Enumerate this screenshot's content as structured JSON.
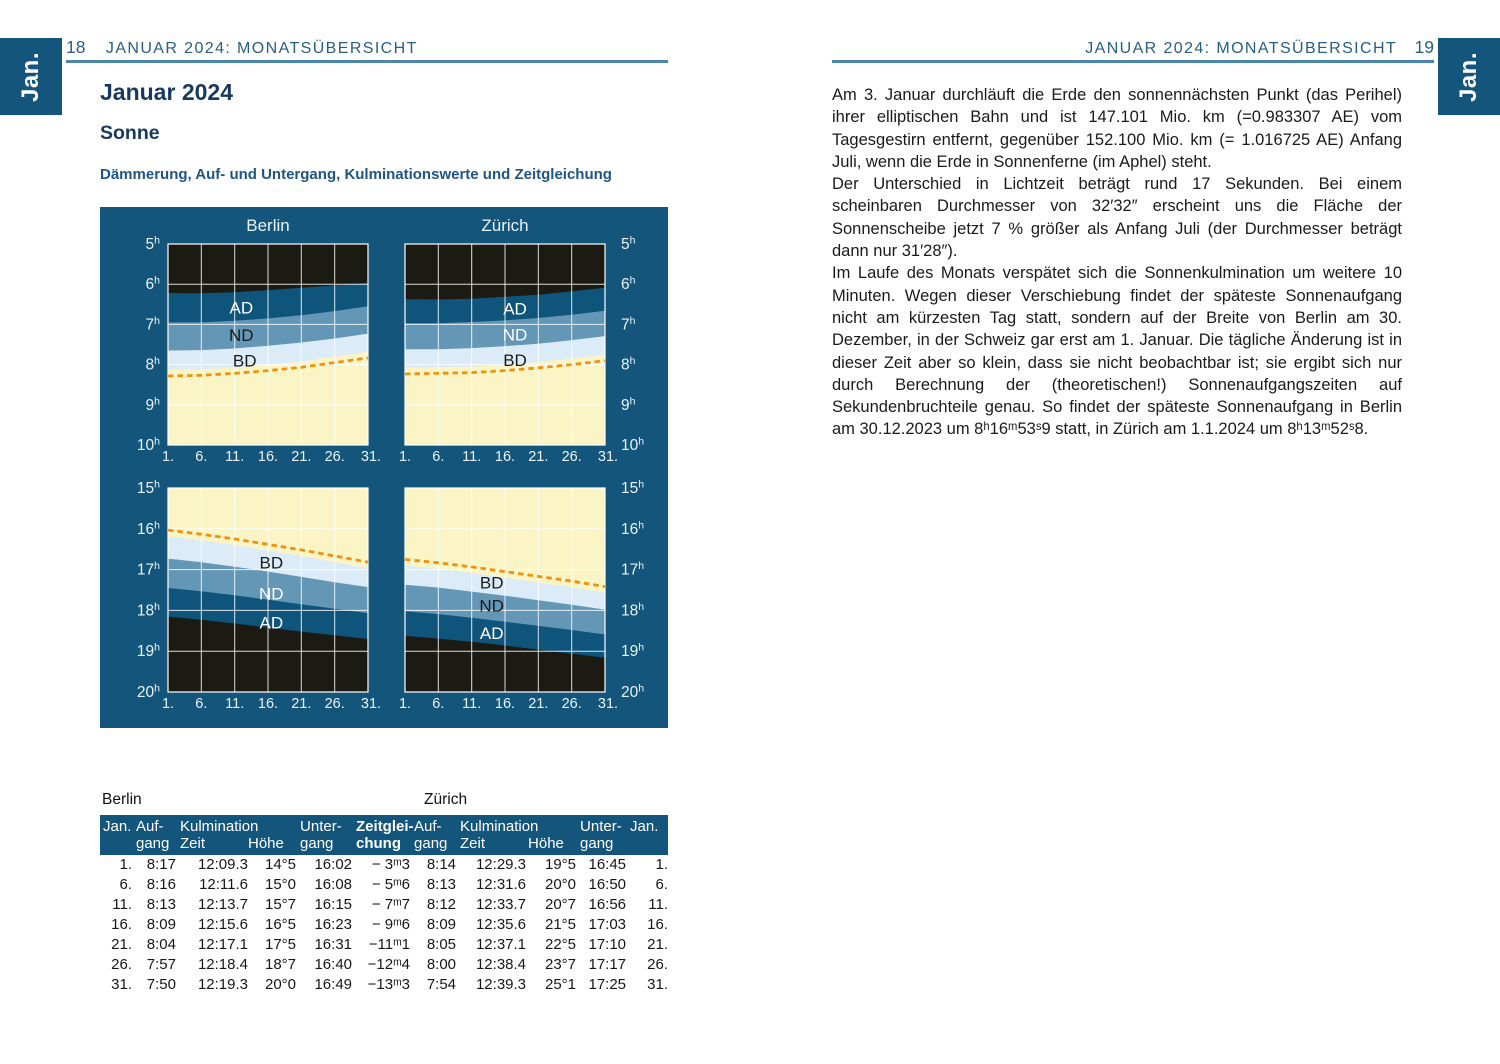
{
  "left_page": {
    "tab": "Jan.",
    "page_number": "18",
    "header": "JANUAR 2024: MONATSÜBERSICHT",
    "title": "Januar 2024",
    "section": "Sonne",
    "subtitle": "Dämmerung, Auf- und Untergang, Kulminationswerte und Zeitgleichung"
  },
  "right_page": {
    "tab": "Jan.",
    "page_number": "19",
    "header": "JANUAR 2024: MONATSÜBERSICHT",
    "paragraphs": [
      "Am 3. Januar durchläuft die Erde den sonnennächsten Punkt (das Perihel) ihrer elliptischen Bahn und ist 147.101 Mio. km (=0.983307 AE) vom Tagesgestirn entfernt, gegenüber 152.100 Mio. km (= 1.016725 AE) Anfang Juli, wenn die Erde in Sonnenferne (im Aphel) steht.",
      "Der Unterschied in Lichtzeit beträgt rund 17 Sekunden. Bei einem scheinbaren Durchmesser von 32′32″ erscheint uns die Fläche der Sonnenscheibe jetzt 7 % größer als Anfang Juli (der Durchmesser beträgt dann nur 31′28″).",
      "Im Laufe des Monats verspätet sich die Sonnenkulmination um weitere 10 Minuten. Wegen dieser Verschiebung findet der späteste Sonnenaufgang nicht am kürzesten Tag statt, sondern auf der Breite von Berlin am 30. Dezember, in der Schweiz gar erst am 1. Januar. Die tägliche Änderung ist in dieser Zeit aber so klein, dass sie nicht beobachtbar ist; sie ergibt sich nur durch Berechnung der (theoretischen!) Sonnenaufgangszeiten auf Sekundenbruchteile genau. So findet der späteste Sonnenaufgang in Berlin am 30.12.2023 um 8ʰ16ᵐ53ˢ9 statt, in Zürich am 1.1.2024 um 8ʰ13ᵐ52ˢ8."
    ]
  },
  "colors": {
    "page_bg": "#FFFFFF",
    "panel_bg": "#14567B",
    "night": "#1B1B13",
    "ad": "#0F547B",
    "nd": "#6496B6",
    "bd": "#DCEBF8",
    "day": "#FBF4C5",
    "sun_line": "#F0920F",
    "grid": "#FFFFFF",
    "chart_text": "#EAF2F7",
    "header_text": "#265F83",
    "rule": "#4B87AD",
    "title_text": "#17395F",
    "subtitle_text": "#1D5585",
    "table_header_bg": "#14567B",
    "label_dark": "#1A1A1A",
    "label_light": "#FFFFFF"
  },
  "chart_data": {
    "type": "area",
    "cities": [
      "Berlin",
      "Zürich"
    ],
    "days": [
      1,
      6,
      11,
      16,
      21,
      26,
      31
    ],
    "x_tick_labels": [
      "1.",
      "6.",
      "11.",
      "16.",
      "21.",
      "26.",
      "31."
    ],
    "hour_suffix": "h",
    "hour_labels_morning": [
      "5",
      "6",
      "7",
      "8",
      "9",
      "10"
    ],
    "hour_labels_evening": [
      "15",
      "16",
      "17",
      "18",
      "19",
      "20"
    ],
    "panels": [
      {
        "city": "Berlin",
        "period": "morning",
        "hour_range": [
          5,
          10
        ],
        "boundaries": {
          "astro": [
            6.22,
            6.23,
            6.2,
            6.15,
            6.09,
            6.03,
            5.97
          ],
          "nautical": [
            6.95,
            6.95,
            6.91,
            6.85,
            6.77,
            6.67,
            6.55
          ],
          "civil": [
            7.65,
            7.64,
            7.6,
            7.53,
            7.45,
            7.35,
            7.23
          ],
          "day": [
            8.13,
            8.12,
            8.07,
            8.0,
            7.92,
            7.8,
            7.68
          ]
        },
        "sun_line": [
          8.283,
          8.267,
          8.217,
          8.15,
          8.067,
          7.95,
          7.833
        ],
        "labels": [
          {
            "text": "AD",
            "day": 12,
            "hour": 6.58,
            "color": "#FFFFFF"
          },
          {
            "text": "ND",
            "day": 12,
            "hour": 7.26,
            "color": "#1A1A1A"
          },
          {
            "text": "BD",
            "day": 12.5,
            "hour": 7.9,
            "color": "#1A1A1A"
          }
        ]
      },
      {
        "city": "Zürich",
        "period": "morning",
        "hour_range": [
          5,
          10
        ],
        "boundaries": {
          "astro": [
            6.37,
            6.38,
            6.36,
            6.31,
            6.26,
            6.18,
            6.09
          ],
          "nautical": [
            6.97,
            6.97,
            6.94,
            6.9,
            6.84,
            6.76,
            6.66
          ],
          "civil": [
            7.62,
            7.62,
            7.59,
            7.54,
            7.48,
            7.39,
            7.29
          ],
          "day": [
            8.083,
            8.067,
            8.05,
            8.0,
            7.933,
            7.85,
            7.75
          ]
        },
        "sun_line": [
          8.233,
          8.217,
          8.2,
          8.15,
          8.083,
          8.0,
          7.9
        ],
        "labels": [
          {
            "text": "AD",
            "day": 17.5,
            "hour": 6.6,
            "color": "#FFFFFF"
          },
          {
            "text": "ND",
            "day": 17.5,
            "hour": 7.25,
            "color": "#FFFFFF"
          },
          {
            "text": "BD",
            "day": 17.5,
            "hour": 7.88,
            "color": "#1A1A1A"
          }
        ]
      },
      {
        "city": "Berlin",
        "period": "evening",
        "hour_range": [
          15,
          20
        ],
        "boundaries": {
          "day": [
            16.183,
            16.283,
            16.4,
            16.533,
            16.667,
            16.817,
            16.967
          ],
          "civil": [
            16.73,
            16.82,
            16.93,
            17.05,
            17.18,
            17.31,
            17.43
          ],
          "nautical": [
            17.45,
            17.53,
            17.63,
            17.74,
            17.85,
            17.96,
            18.07
          ],
          "astro": [
            18.15,
            18.23,
            18.32,
            18.42,
            18.52,
            18.61,
            18.7
          ]
        },
        "sun_line": [
          16.033,
          16.133,
          16.25,
          16.383,
          16.517,
          16.667,
          16.817
        ],
        "labels": [
          {
            "text": "BD",
            "day": 16.5,
            "hour": 16.82,
            "color": "#1A1A1A"
          },
          {
            "text": "ND",
            "day": 16.5,
            "hour": 17.58,
            "color": "#FFFFFF"
          },
          {
            "text": "AD",
            "day": 16.5,
            "hour": 18.3,
            "color": "#FFFFFF"
          }
        ]
      },
      {
        "city": "Zürich",
        "period": "evening",
        "hour_range": [
          15,
          20
        ],
        "boundaries": {
          "day": [
            16.9,
            16.983,
            17.083,
            17.2,
            17.317,
            17.433,
            17.567
          ],
          "civil": [
            17.37,
            17.44,
            17.54,
            17.64,
            17.75,
            17.86,
            17.98
          ],
          "nautical": [
            18.02,
            18.09,
            18.18,
            18.28,
            18.38,
            18.48,
            18.59
          ],
          "astro": [
            18.62,
            18.69,
            18.77,
            18.86,
            18.96,
            19.06,
            19.16
          ]
        },
        "sun_line": [
          16.75,
          16.833,
          16.933,
          17.05,
          17.167,
          17.283,
          17.417
        ],
        "labels": [
          {
            "text": "BD",
            "day": 14,
            "hour": 17.32,
            "color": "#1A1A1A"
          },
          {
            "text": "ND",
            "day": 14,
            "hour": 17.88,
            "color": "#1A1A1A"
          },
          {
            "text": "AD",
            "day": 14,
            "hour": 18.55,
            "color": "#FFFFFF"
          }
        ]
      }
    ]
  },
  "table": {
    "city_labels": [
      "Berlin",
      "Zürich"
    ],
    "header": {
      "jan": "Jan.",
      "auf_line1": "Auf-",
      "auf_line2": "gang",
      "kulmination": "Kulmination",
      "zeit": "Zeit",
      "hoehe": "Höhe",
      "unter_line1": "Unter-",
      "unter_line2": "gang",
      "zeitgleichung_line1": "Zeitglei-",
      "zeitgleichung_line2": "chung"
    },
    "rows": [
      [
        "1.",
        "8:17",
        "12:09.3",
        "14°5",
        "16:02",
        "− 3ᵐ3",
        "8:14",
        "12:29.3",
        "19°5",
        "16:45",
        "1."
      ],
      [
        "6.",
        "8:16",
        "12:11.6",
        "15°0",
        "16:08",
        "− 5ᵐ6",
        "8:13",
        "12:31.6",
        "20°0",
        "16:50",
        "6."
      ],
      [
        "11.",
        "8:13",
        "12:13.7",
        "15°7",
        "16:15",
        "− 7ᵐ7",
        "8:12",
        "12:33.7",
        "20°7",
        "16:56",
        "11."
      ],
      [
        "16.",
        "8:09",
        "12:15.6",
        "16°5",
        "16:23",
        "− 9ᵐ6",
        "8:09",
        "12:35.6",
        "21°5",
        "17:03",
        "16."
      ],
      [
        "21.",
        "8:04",
        "12:17.1",
        "17°5",
        "16:31",
        "−11ᵐ1",
        "8:05",
        "12:37.1",
        "22°5",
        "17:10",
        "21."
      ],
      [
        "26.",
        "7:57",
        "12:18.4",
        "18°7",
        "16:40",
        "−12ᵐ4",
        "8:00",
        "12:38.4",
        "23°7",
        "17:17",
        "26."
      ],
      [
        "31.",
        "7:50",
        "12:19.3",
        "20°0",
        "16:49",
        "−13ᵐ3",
        "7:54",
        "12:39.3",
        "25°1",
        "17:25",
        "31."
      ]
    ]
  }
}
